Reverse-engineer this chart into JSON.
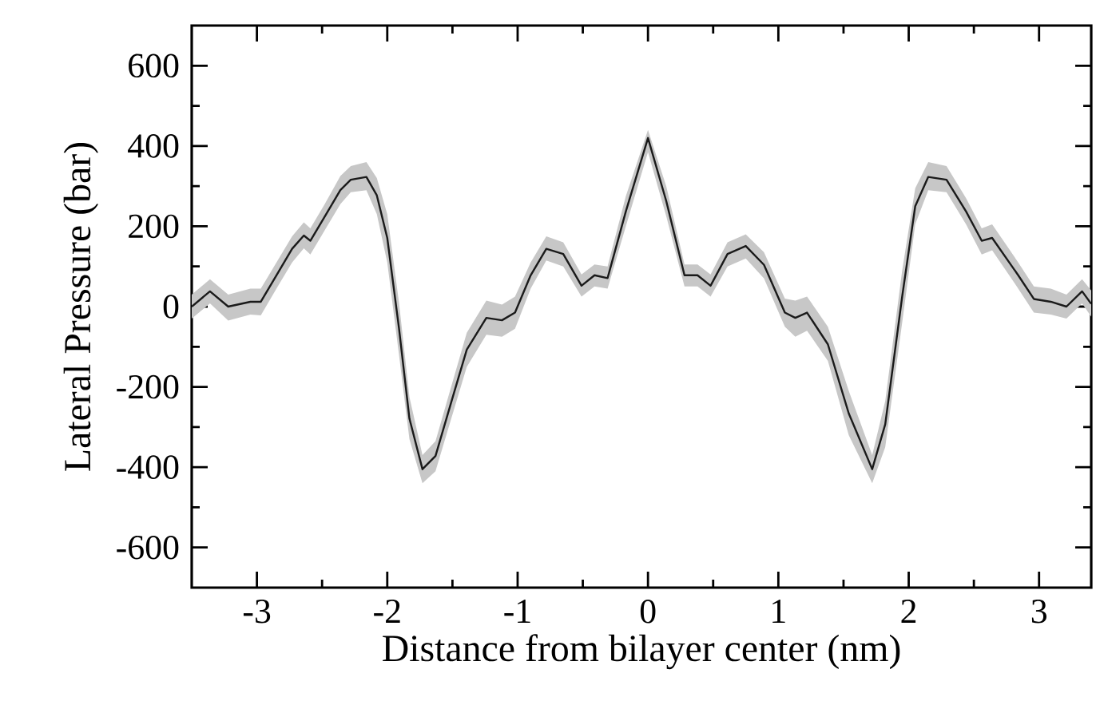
{
  "chart_data": {
    "type": "line",
    "xlabel": "Distance from bilayer center (nm)",
    "ylabel": "Lateral Pressure (bar)",
    "xlim": [
      -3.5,
      3.4
    ],
    "ylim": [
      -700,
      700
    ],
    "xticks": [
      -3,
      {
        "value": -2.5,
        "label": null
      },
      -2,
      {
        "value": -1.5,
        "label": null
      },
      -1,
      {
        "value": -0.5,
        "label": null
      },
      0,
      {
        "value": 0.5,
        "label": null
      },
      1,
      {
        "value": 1.5,
        "label": null
      },
      2,
      {
        "value": 2.5,
        "label": null
      },
      3
    ],
    "yticks": [
      -600,
      {
        "value": -500,
        "label": null
      },
      -400,
      {
        "value": -300,
        "label": null
      },
      -200,
      {
        "value": -100,
        "label": null
      },
      0,
      {
        "value": 100,
        "label": null
      },
      200,
      {
        "value": 300,
        "label": null
      },
      400,
      {
        "value": 500,
        "label": null
      },
      600
    ],
    "marker": "none",
    "line_style": "solid",
    "series": [
      {
        "color": "#1a1a1a",
        "x": [
          -3.5,
          -3.36,
          -3.22,
          -3.05,
          -2.97,
          -2.85,
          -2.73,
          -2.64,
          -2.59,
          -2.48,
          -2.36,
          -2.28,
          -2.16,
          -2.08,
          -2.0,
          -1.91,
          -1.83,
          -1.73,
          -1.63,
          -1.51,
          -1.39,
          -1.24,
          -1.12,
          -1.02,
          -0.9,
          -0.78,
          -0.65,
          -0.51,
          -0.41,
          -0.31,
          -0.17,
          0,
          0.14,
          0.28,
          0.38,
          0.48,
          0.61,
          0.75,
          0.89,
          1.05,
          1.13,
          1.22,
          1.38,
          1.54,
          1.72,
          1.82,
          1.95,
          2.05,
          2.15,
          2.29,
          2.44,
          2.56,
          2.64,
          2.84,
          2.96,
          3.09,
          3.21,
          3.33,
          3.4
        ],
        "values": [
          0,
          38,
          0,
          12,
          12,
          78,
          144,
          177,
          164,
          224,
          290,
          316,
          323,
          277,
          171,
          -54,
          -279,
          -405,
          -372,
          -239,
          -107,
          -28,
          -34,
          -15,
          78,
          144,
          131,
          52,
          78,
          71,
          237,
          420,
          263,
          78,
          78,
          52,
          131,
          151,
          104,
          -15,
          -28,
          -15,
          -94,
          -266,
          -405,
          -293,
          25,
          250,
          323,
          316,
          237,
          164,
          171,
          78,
          19,
          12,
          0,
          38,
          7
        ],
        "lower": [
          -30,
          8,
          -35,
          -20,
          -22,
          45,
          110,
          145,
          130,
          190,
          255,
          285,
          290,
          230,
          110,
          -120,
          -330,
          -440,
          -410,
          -280,
          -150,
          -70,
          -75,
          -55,
          45,
          115,
          100,
          25,
          50,
          45,
          200,
          385,
          225,
          50,
          50,
          25,
          100,
          120,
          70,
          -50,
          -75,
          -60,
          -135,
          -320,
          -440,
          -350,
          -40,
          205,
          290,
          285,
          205,
          130,
          140,
          45,
          -15,
          -20,
          -30,
          8,
          -25
        ],
        "upper": [
          30,
          68,
          30,
          45,
          45,
          110,
          175,
          210,
          195,
          255,
          325,
          350,
          360,
          320,
          230,
          10,
          -225,
          -370,
          -335,
          -200,
          -65,
          15,
          5,
          25,
          110,
          175,
          160,
          80,
          105,
          100,
          275,
          440,
          300,
          105,
          105,
          80,
          160,
          180,
          135,
          20,
          15,
          25,
          -50,
          -210,
          -370,
          -235,
          90,
          295,
          360,
          350,
          270,
          195,
          205,
          110,
          50,
          45,
          30,
          68,
          40
        ]
      }
    ]
  }
}
